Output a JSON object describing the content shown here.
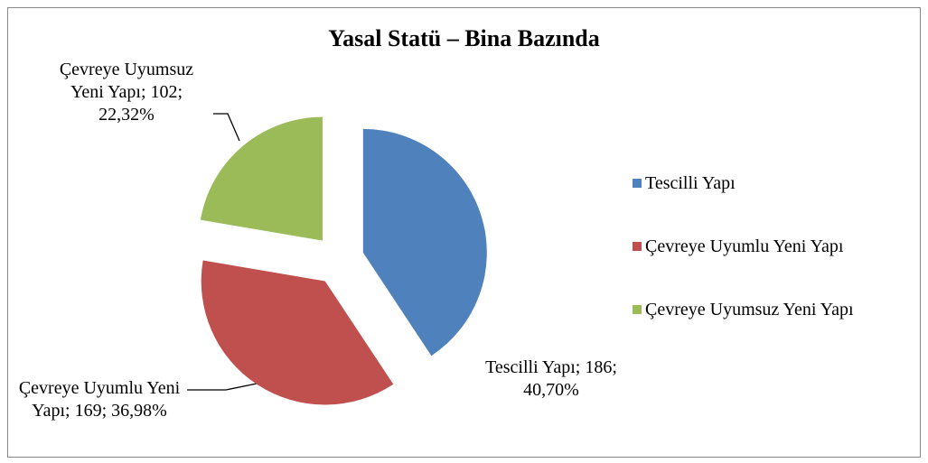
{
  "chart_data": {
    "type": "pie",
    "title": "Yasal Statü – Bina Bazında",
    "categories": [
      "Tescilli Yapı",
      "Çevreye Uyumlu Yeni Yapı",
      "Çevreye Uyumsuz Yeni Yapı"
    ],
    "values": [
      186,
      169,
      102
    ],
    "value_labels": [
      "Tescilli Yapı; 186; 40,70%",
      "Çevreye Uyumlu Yeni Yapı; 169; 36,98%",
      "Çevreye Uyumsuz Yeni Yapı; 102; 22,32%"
    ],
    "colors": [
      "#4f81bd",
      "#c0504d",
      "#9bbb59"
    ],
    "legend": "right"
  }
}
